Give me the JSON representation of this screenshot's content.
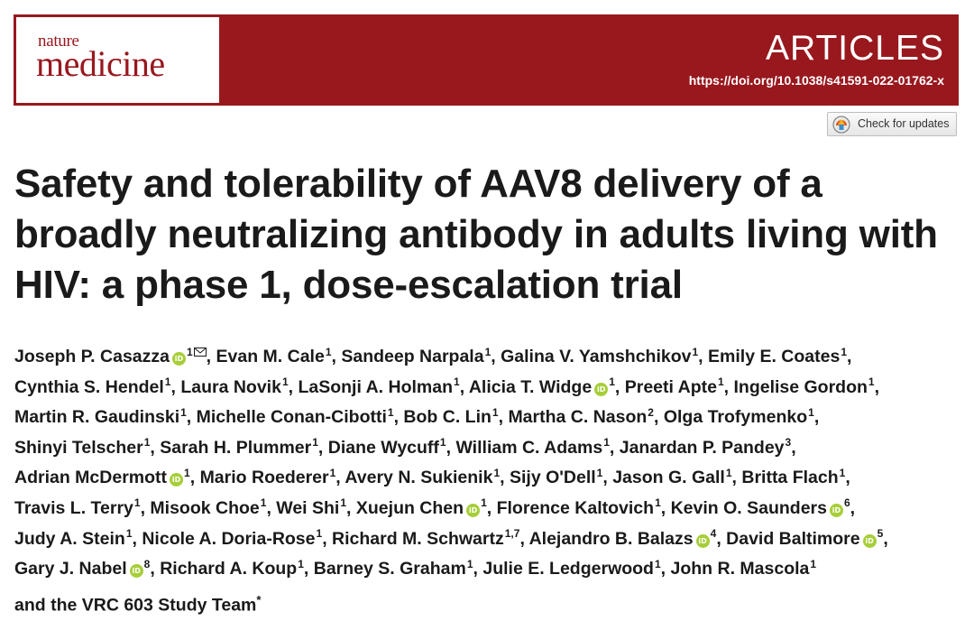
{
  "header": {
    "journal_line1": "nature",
    "journal_line2": "medicine",
    "section": "ARTICLES",
    "doi": "https://doi.org/10.1038/s41591-022-01762-x",
    "brand_color": "#98181e"
  },
  "check_updates": {
    "label": "Check for updates",
    "icon": "crossmark-icon"
  },
  "title": "Safety and tolerability of AAV8 delivery of a broadly neutralizing antibody in adults living with HIV: a phase 1, dose-escalation trial",
  "orcid_badge": {
    "text": "iD",
    "color": "#a6ce39"
  },
  "authors": [
    {
      "name": "Joseph P. Casazza",
      "orcid": true,
      "aff": "1",
      "email": true
    },
    {
      "name": "Evan M. Cale",
      "aff": "1"
    },
    {
      "name": "Sandeep Narpala",
      "aff": "1"
    },
    {
      "name": "Galina V. Yamshchikov",
      "aff": "1"
    },
    {
      "name": "Emily E. Coates",
      "aff": "1"
    },
    {
      "name": "Cynthia S. Hendel",
      "aff": "1"
    },
    {
      "name": "Laura Novik",
      "aff": "1"
    },
    {
      "name": "LaSonji A. Holman",
      "aff": "1"
    },
    {
      "name": "Alicia T. Widge",
      "orcid": true,
      "aff": "1"
    },
    {
      "name": "Preeti Apte",
      "aff": "1"
    },
    {
      "name": "Ingelise Gordon",
      "aff": "1"
    },
    {
      "name": "Martin R. Gaudinski",
      "aff": "1"
    },
    {
      "name": "Michelle Conan-Cibotti",
      "aff": "1"
    },
    {
      "name": "Bob C. Lin",
      "aff": "1"
    },
    {
      "name": "Martha C. Nason",
      "aff": "2"
    },
    {
      "name": "Olga Trofymenko",
      "aff": "1"
    },
    {
      "name": "Shinyi Telscher",
      "aff": "1"
    },
    {
      "name": "Sarah H. Plummer",
      "aff": "1"
    },
    {
      "name": "Diane Wycuff",
      "aff": "1"
    },
    {
      "name": "William C. Adams",
      "aff": "1"
    },
    {
      "name": "Janardan P. Pandey",
      "aff": "3"
    },
    {
      "name": "Adrian McDermott",
      "orcid": true,
      "aff": "1"
    },
    {
      "name": "Mario Roederer",
      "aff": "1"
    },
    {
      "name": "Avery N. Sukienik",
      "aff": "1"
    },
    {
      "name": "Sijy O'Dell",
      "aff": "1"
    },
    {
      "name": "Jason G. Gall",
      "aff": "1"
    },
    {
      "name": "Britta Flach",
      "aff": "1"
    },
    {
      "name": "Travis L. Terry",
      "aff": "1"
    },
    {
      "name": "Misook Choe",
      "aff": "1"
    },
    {
      "name": "Wei Shi",
      "aff": "1"
    },
    {
      "name": "Xuejun Chen",
      "orcid": true,
      "aff": "1"
    },
    {
      "name": "Florence Kaltovich",
      "aff": "1"
    },
    {
      "name": "Kevin O. Saunders",
      "orcid": true,
      "aff": "6"
    },
    {
      "name": "Judy A. Stein",
      "aff": "1"
    },
    {
      "name": "Nicole A. Doria-Rose",
      "aff": "1"
    },
    {
      "name": "Richard M. Schwartz",
      "aff": "1,7"
    },
    {
      "name": "Alejandro B. Balazs",
      "orcid": true,
      "aff": "4"
    },
    {
      "name": "David Baltimore",
      "orcid": true,
      "aff": "5"
    },
    {
      "name": "Gary J. Nabel",
      "orcid": true,
      "aff": "8"
    },
    {
      "name": "Richard A. Koup",
      "aff": "1"
    },
    {
      "name": "Barney S. Graham",
      "aff": "1"
    },
    {
      "name": "Julie E. Ledgerwood",
      "aff": "1"
    },
    {
      "name": "John R. Mascola",
      "aff": "1"
    }
  ],
  "authors_tail": "and the VRC 603 Study Team",
  "authors_tail_mark": "*"
}
